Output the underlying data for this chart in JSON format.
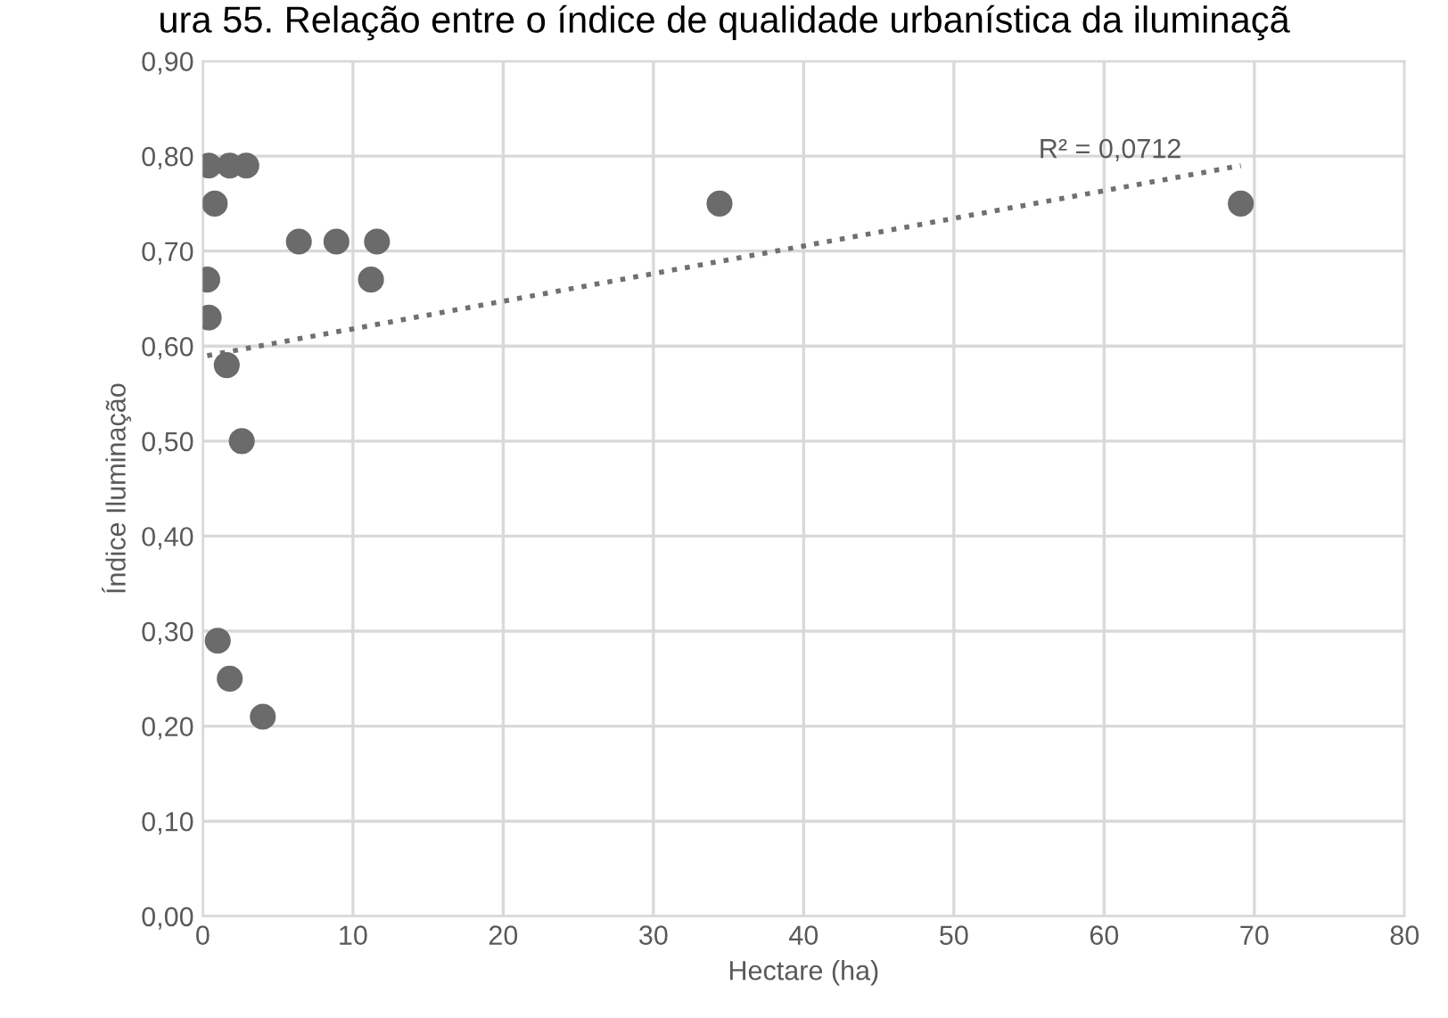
{
  "chart_data": {
    "type": "scatter",
    "title": "ura 55. Relação entre o índice de qualidade urbanística da iluminaçã",
    "xlabel": "Hectare (ha)",
    "ylabel": "Índice Iluminação",
    "xlim": [
      0,
      80
    ],
    "xticks": [
      0,
      10,
      20,
      30,
      40,
      50,
      60,
      70,
      80
    ],
    "ylim": [
      0,
      0.9
    ],
    "yticks": [
      {
        "value": 0,
        "label": "0,00"
      },
      {
        "value": 0.1,
        "label": "0,10"
      },
      {
        "value": 0.2,
        "label": "0,20"
      },
      {
        "value": 0.3,
        "label": "0,30"
      },
      {
        "value": 0.4,
        "label": "0,40"
      },
      {
        "value": 0.5,
        "label": "0,50"
      },
      {
        "value": 0.6,
        "label": "0,60"
      },
      {
        "value": 0.7,
        "label": "0,70"
      },
      {
        "value": 0.8,
        "label": "0,80"
      },
      {
        "value": 0.9,
        "label": "0,90"
      }
    ],
    "grid": true,
    "legend": false,
    "annotations": [
      "R² = 0,0712"
    ],
    "series": [
      {
        "marker": "circle",
        "color": "#6b6b6b",
        "x": [
          0.4,
          1.8,
          2.9,
          0.8,
          6.4,
          8.9,
          11.6,
          0.3,
          11.2,
          0.4,
          1.6,
          2.6,
          1.0,
          1.8,
          4.0,
          34.4,
          69.1
        ],
        "values": [
          0.79,
          0.79,
          0.79,
          0.75,
          0.71,
          0.71,
          0.71,
          0.67,
          0.67,
          0.63,
          0.58,
          0.5,
          0.29,
          0.25,
          0.21,
          0.75,
          0.75
        ]
      },
      {
        "type": "line",
        "line_style": "dotted",
        "color": "#707070",
        "x": [
          0.3,
          69.1
        ],
        "values": [
          0.59,
          0.79
        ]
      }
    ]
  }
}
